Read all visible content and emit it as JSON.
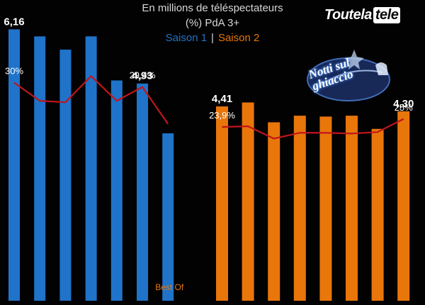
{
  "header": {
    "line1": "En millions de téléspectateurs",
    "line2": "(%) PdA 3+",
    "season1": "Saison 1",
    "separator": "|",
    "season2": "Saison 2"
  },
  "brand_logo": {
    "part1": "Toutela",
    "part2": "tele"
  },
  "show_logo": {
    "line1": "Notti sul",
    "line2": "ghiaccio"
  },
  "colors": {
    "season1": "#1f73c9",
    "season2": "#e8760b",
    "share_line": "#c0151c",
    "background": "#020202"
  },
  "chart_data": [
    {
      "type": "bar",
      "title": "En millions de téléspectateurs",
      "series": [
        {
          "name": "Saison 1",
          "values": [
            6.16,
            6.0,
            5.7,
            6.0,
            5.0,
            4.93,
            3.8
          ],
          "value_labels": [
            "6,16",
            "",
            "",
            "",
            "",
            "4,93",
            ""
          ],
          "category_labels": [
            "",
            "",
            "",
            "",
            "",
            "",
            "Best Of"
          ],
          "share_percent": [
            30,
            27.5,
            27.3,
            30.9,
            27.5,
            29.4,
            24.3
          ],
          "share_labels": [
            "30%",
            "",
            "",
            "",
            "",
            "29,4%",
            ""
          ]
        },
        {
          "name": "Saison 2",
          "values": [
            4.41,
            4.5,
            4.05,
            4.2,
            4.18,
            4.2,
            3.9,
            4.3
          ],
          "value_labels": [
            "4,41",
            "",
            "",
            "",
            "",
            "",
            "",
            "4,30"
          ],
          "category_labels": [
            "",
            "",
            "",
            "",
            "",
            "",
            "",
            ""
          ],
          "share_percent": [
            23.9,
            24.0,
            22.3,
            23.1,
            23.1,
            23.0,
            23.2,
            25
          ],
          "share_labels": [
            "23,9%",
            "",
            "",
            "",
            "",
            "",
            "",
            "25%"
          ]
        }
      ],
      "ylabel": "(%) PdA 3+",
      "ylim": [
        0,
        6.6
      ],
      "share_ylim": [
        0,
        40
      ],
      "grid": false,
      "legend": "top-center"
    }
  ]
}
